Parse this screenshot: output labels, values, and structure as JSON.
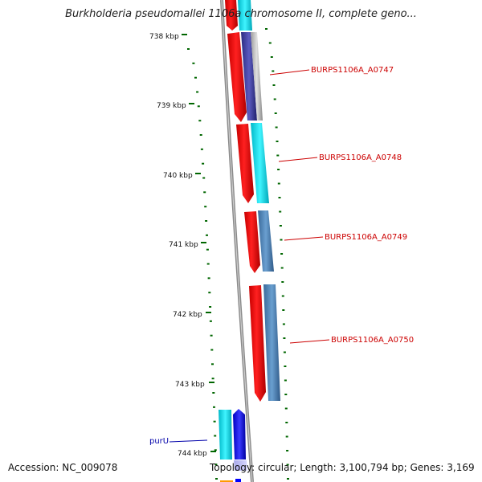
{
  "title": "Burkholderia pseudomallei 1106a chromosome II, complete geno...",
  "footer": {
    "accession": "Accession: NC_009078",
    "summary": "Topology: circular; Length: 3,100,794 bp; Genes: 3,169"
  },
  "ticks": [
    "738 kbp",
    "739 kbp",
    "740 kbp",
    "741 kbp",
    "742 kbp",
    "743 kbp",
    "744 kbp"
  ],
  "genes": [
    {
      "id": "BURPS1106A_A0747",
      "color": "#cc0000"
    },
    {
      "id": "BURPS1106A_A0748",
      "color": "#cc0000"
    },
    {
      "id": "BURPS1106A_A0749",
      "color": "#cc0000"
    },
    {
      "id": "BURPS1106A_A0750",
      "color": "#cc0000"
    },
    {
      "id": "purU",
      "color": "#0000aa"
    }
  ],
  "colors": {
    "cds": "#ff0000",
    "cyan": "#00e5f0",
    "steel_blue": "#4a7fb3",
    "dark_blue": "#3a3aa0",
    "blue": "#0000ff",
    "gray": "#b8b8b8",
    "backbone": "#888888",
    "tick": "#006600"
  }
}
